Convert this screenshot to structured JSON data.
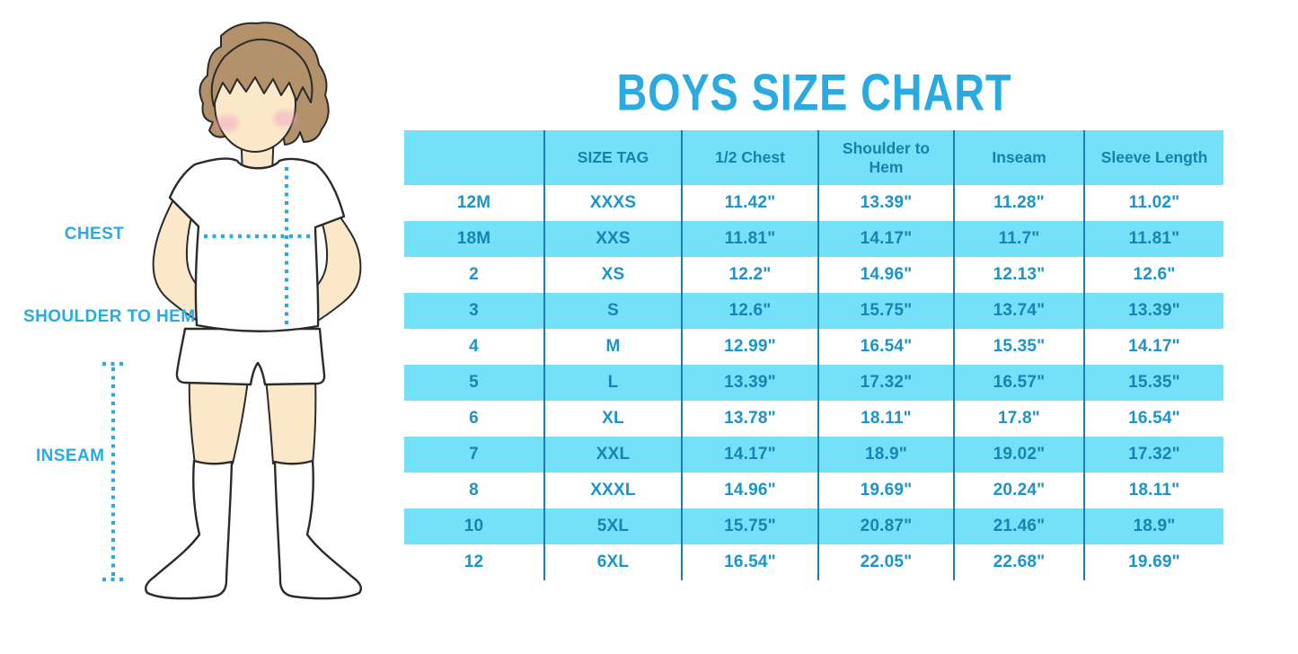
{
  "title": "BOYS SIZE CHART",
  "colors": {
    "accent": "#29ABE2",
    "table_cyan": "#75E1F9",
    "header_text": "#1B7FA8",
    "cell_text": "#1B93CC",
    "cell_text_on_cyan": "#1884B2",
    "divider": "#1A7FB0",
    "skin": "#FBE8C9",
    "hair": "#B3916A",
    "outline": "#2B2B2B",
    "blush": "#F2A9BE"
  },
  "figure": {
    "chest_label": "CHEST",
    "shoulder_label": "SHOULDER TO HEM",
    "inseam_label": "INSEAM"
  },
  "chart_data": {
    "type": "table",
    "title": "BOYS SIZE CHART",
    "columns": [
      "",
      "SIZE TAG",
      "1/2 Chest",
      "Shoulder to Hem",
      "Inseam",
      "Sleeve Length"
    ],
    "rows": [
      [
        "12M",
        "XXXS",
        "11.42\"",
        "13.39\"",
        "11.28\"",
        "11.02\""
      ],
      [
        "18M",
        "XXS",
        "11.81\"",
        "14.17\"",
        "11.7\"",
        "11.81\""
      ],
      [
        "2",
        "XS",
        "12.2\"",
        "14.96\"",
        "12.13\"",
        "12.6\""
      ],
      [
        "3",
        "S",
        "12.6\"",
        "15.75\"",
        "13.74\"",
        "13.39\""
      ],
      [
        "4",
        "M",
        "12.99\"",
        "16.54\"",
        "15.35\"",
        "14.17\""
      ],
      [
        "5",
        "L",
        "13.39\"",
        "17.32\"",
        "16.57\"",
        "15.35\""
      ],
      [
        "6",
        "XL",
        "13.78\"",
        "18.11\"",
        "17.8\"",
        "16.54\""
      ],
      [
        "7",
        "XXL",
        "14.17\"",
        "18.9\"",
        "19.02\"",
        "17.32\""
      ],
      [
        "8",
        "XXXL",
        "14.96\"",
        "19.69\"",
        "20.24\"",
        "18.11\""
      ],
      [
        "10",
        "5XL",
        "15.75\"",
        "20.87\"",
        "21.46\"",
        "18.9\""
      ],
      [
        "12",
        "6XL",
        "16.54\"",
        "22.05\"",
        "22.68\"",
        "19.69\""
      ]
    ],
    "row_stripe": "alternate white / cyan starting white",
    "legend_position": "none",
    "grid": "vertical column dividers only"
  }
}
